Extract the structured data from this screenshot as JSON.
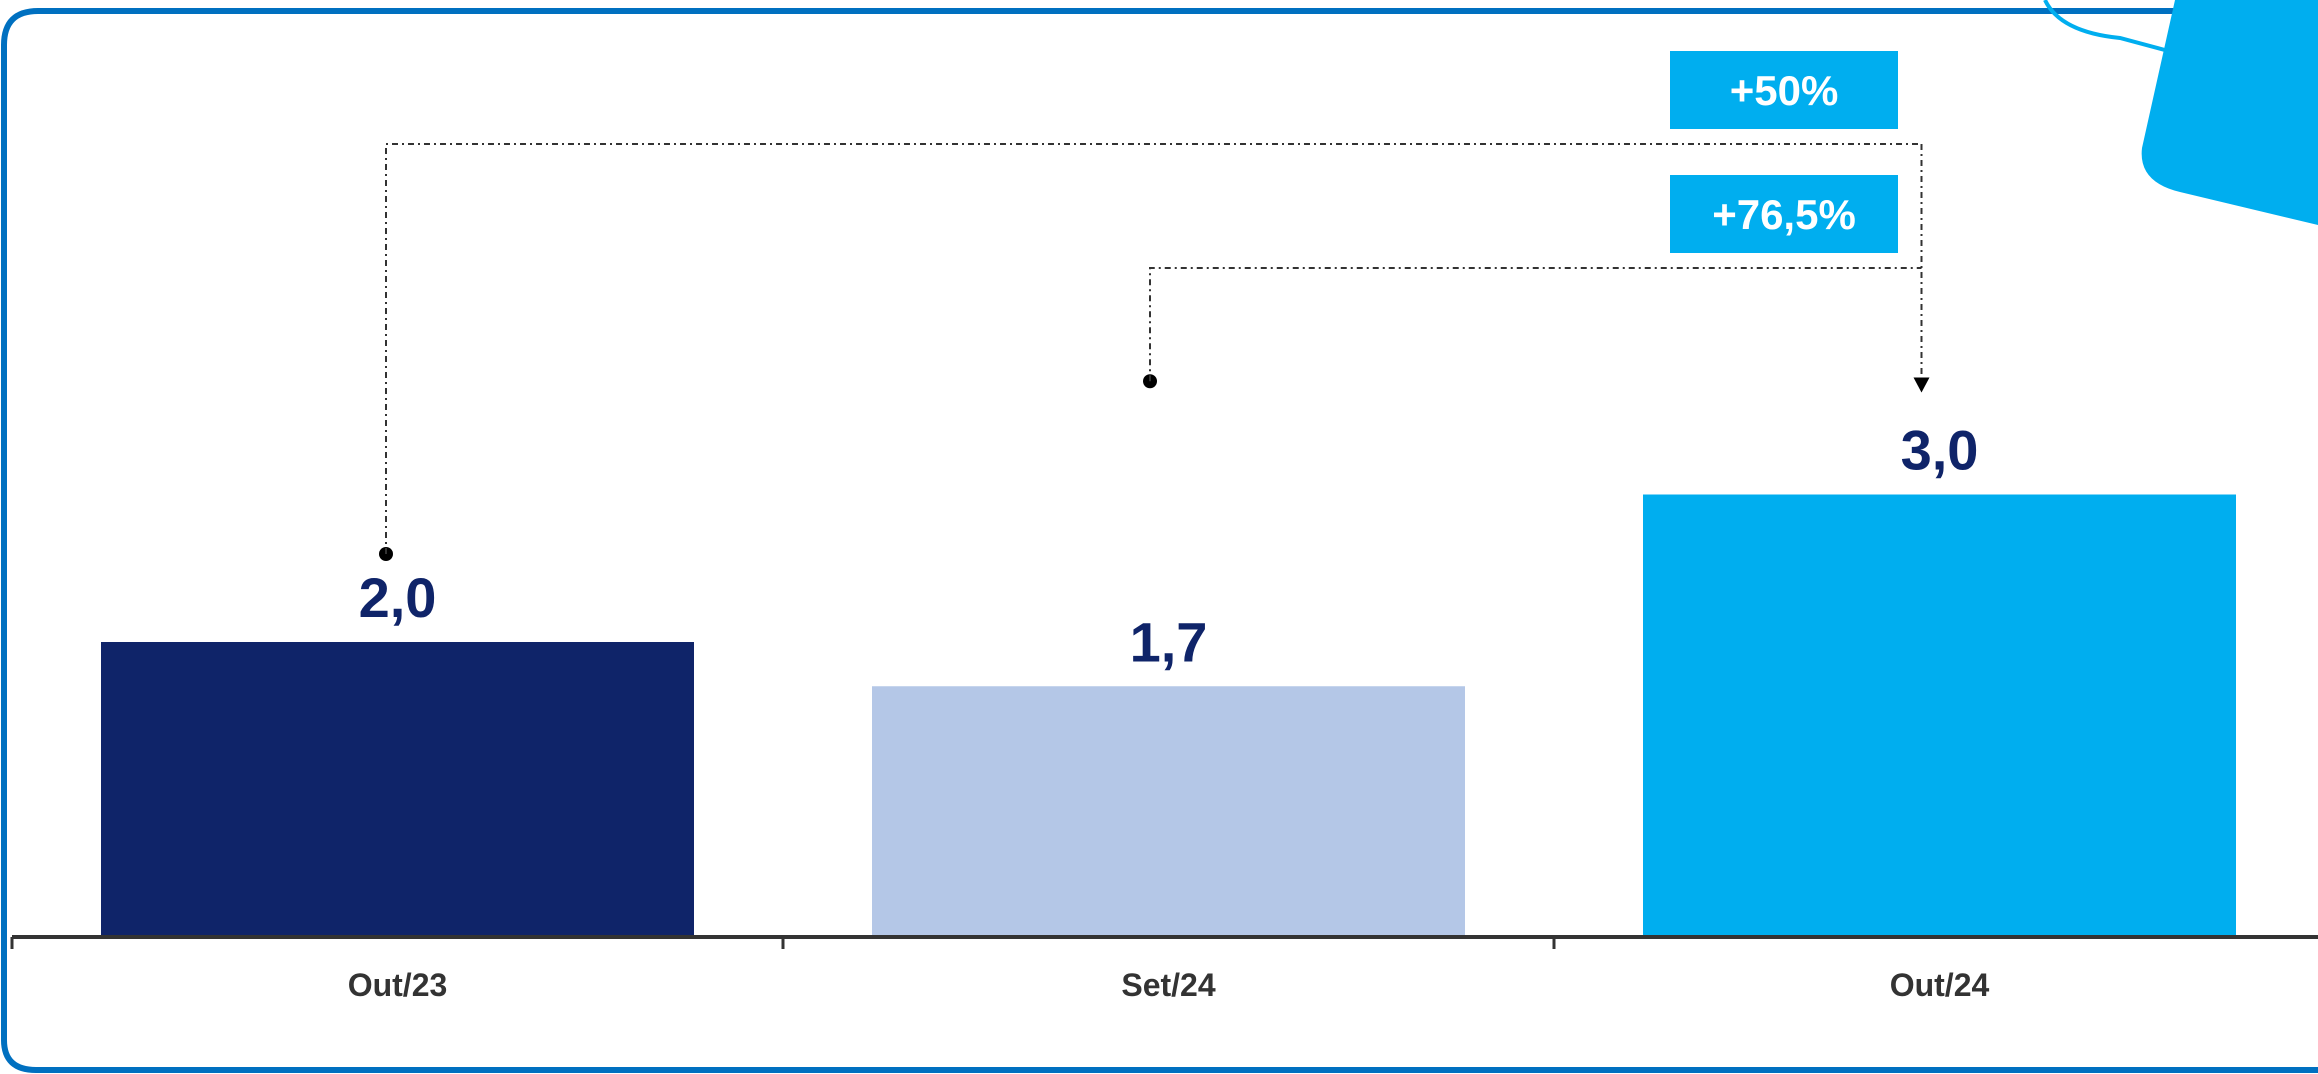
{
  "chart_data": {
    "type": "bar",
    "categories": [
      "Out/23",
      "Set/24",
      "Out/24"
    ],
    "values": [
      2.0,
      1.7,
      3.0
    ],
    "value_labels": [
      "2,0",
      "1,7",
      "3,0"
    ],
    "bar_colors": [
      "#0F2469",
      "#B4C7E7",
      "#00AEEF"
    ],
    "ylim": [
      0,
      3.8
    ],
    "grid": false,
    "legend": "none",
    "comparisons": [
      {
        "from_index": 0,
        "to_index": 2,
        "label": "+50%"
      },
      {
        "from_index": 1,
        "to_index": 2,
        "label": "+76,5%"
      }
    ]
  },
  "colors": {
    "frame": "#0070C0",
    "accent": "#00AEEF",
    "value_label": "#0F2469",
    "axis": "#333333",
    "tick_label": "#333333",
    "badge_text": "#FFFFFF",
    "connector": "#333333"
  }
}
